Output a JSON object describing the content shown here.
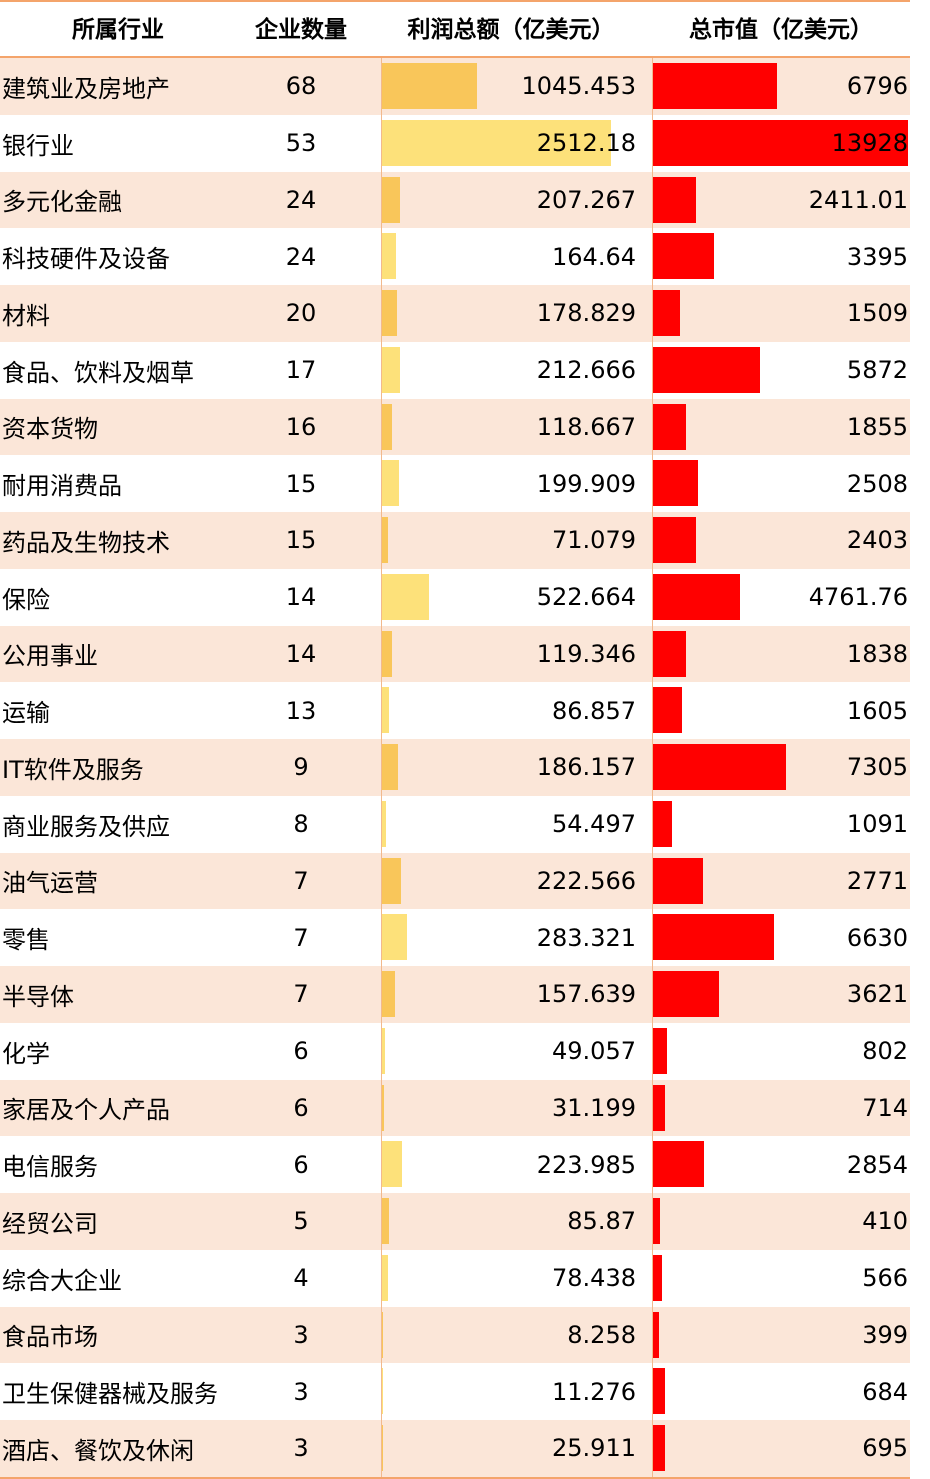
{
  "headers": {
    "industry": "所属行业",
    "count": "企业数量",
    "profit": "利润总额（亿美元）",
    "market_cap": "总市值（亿美元）"
  },
  "colors": {
    "row_stripe": "#fbe6d8",
    "profit_bar_light": "#fde17a",
    "profit_bar_dark": "#f9c65a",
    "market_cap_bar": "#ff0000",
    "header_rule": "#f4a46b"
  },
  "chart_data": {
    "type": "table",
    "columns": [
      "所属行业",
      "企业数量",
      "利润总额（亿美元）",
      "总市值（亿美元）"
    ],
    "rows": [
      {
        "industry": "建筑业及房地产",
        "count": "68",
        "profit": "1045.453",
        "market_cap": "6796"
      },
      {
        "industry": "银行业",
        "count": "53",
        "profit": "2512.18",
        "market_cap": "13928"
      },
      {
        "industry": "多元化金融",
        "count": "24",
        "profit": "207.267",
        "market_cap": "2411.01"
      },
      {
        "industry": "科技硬件及设备",
        "count": "24",
        "profit": "164.64",
        "market_cap": "3395"
      },
      {
        "industry": "材料",
        "count": "20",
        "profit": "178.829",
        "market_cap": "1509"
      },
      {
        "industry": "食品、饮料及烟草",
        "count": "17",
        "profit": "212.666",
        "market_cap": "5872"
      },
      {
        "industry": "资本货物",
        "count": "16",
        "profit": "118.667",
        "market_cap": "1855"
      },
      {
        "industry": "耐用消费品",
        "count": "15",
        "profit": "199.909",
        "market_cap": "2508"
      },
      {
        "industry": "药品及生物技术",
        "count": "15",
        "profit": "71.079",
        "market_cap": "2403"
      },
      {
        "industry": "保险",
        "count": "14",
        "profit": "522.664",
        "market_cap": "4761.76"
      },
      {
        "industry": "公用事业",
        "count": "14",
        "profit": "119.346",
        "market_cap": "1838"
      },
      {
        "industry": "运输",
        "count": "13",
        "profit": "86.857",
        "market_cap": "1605"
      },
      {
        "industry": "IT软件及服务",
        "count": "9",
        "profit": "186.157",
        "market_cap": "7305"
      },
      {
        "industry": "商业服务及供应",
        "count": "8",
        "profit": "54.497",
        "market_cap": "1091"
      },
      {
        "industry": "油气运营",
        "count": "7",
        "profit": "222.566",
        "market_cap": "2771"
      },
      {
        "industry": "零售",
        "count": "7",
        "profit": "283.321",
        "market_cap": "6630"
      },
      {
        "industry": "半导体",
        "count": "7",
        "profit": "157.639",
        "market_cap": "3621"
      },
      {
        "industry": "化学",
        "count": "6",
        "profit": "49.057",
        "market_cap": "802"
      },
      {
        "industry": "家居及个人产品",
        "count": "6",
        "profit": "31.199",
        "market_cap": "714"
      },
      {
        "industry": "电信服务",
        "count": "6",
        "profit": "223.985",
        "market_cap": "2854"
      },
      {
        "industry": "经贸公司",
        "count": "5",
        "profit": "85.87",
        "market_cap": "410"
      },
      {
        "industry": "综合大企业",
        "count": "4",
        "profit": "78.438",
        "market_cap": "566"
      },
      {
        "industry": "食品市场",
        "count": "3",
        "profit": "8.258",
        "market_cap": "399"
      },
      {
        "industry": "卫生保健器械及服务",
        "count": "3",
        "profit": "11.276",
        "market_cap": "684"
      },
      {
        "industry": "酒店、餐饮及休闲",
        "count": "3",
        "profit": "25.911",
        "market_cap": "695"
      }
    ]
  }
}
